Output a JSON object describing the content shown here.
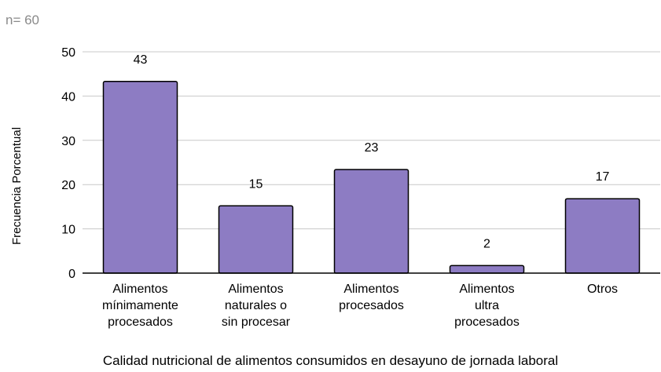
{
  "chart_data": {
    "type": "bar",
    "note": "n= 60",
    "categories": [
      [
        "Alimentos",
        "mínimamente",
        "procesados"
      ],
      [
        "Alimentos",
        "naturales o",
        "sin procesar"
      ],
      [
        "Alimentos",
        "procesados"
      ],
      [
        "Alimentos",
        "ultra",
        "procesados"
      ],
      [
        "Otros"
      ]
    ],
    "values": [
      43.3,
      15.2,
      23.4,
      1.7,
      16.8
    ],
    "data_labels": [
      "43",
      "15",
      "23",
      "2",
      "17"
    ],
    "yticks": [
      "0",
      "10",
      "20",
      "30",
      "40",
      "50"
    ],
    "ylim": [
      0,
      50
    ],
    "xlabel": "Calidad nutricional de alimentos consumidos en desayuno de jornada laboral",
    "ylabel": "Frecuencia Porcentual",
    "grid": true,
    "legend": "none",
    "colors": {
      "bar_fill": "#8d7cc3",
      "bar_stroke": "#000000",
      "grid": "#c8c8c8",
      "axis": "#000000",
      "note": "#8a8a8a"
    }
  }
}
